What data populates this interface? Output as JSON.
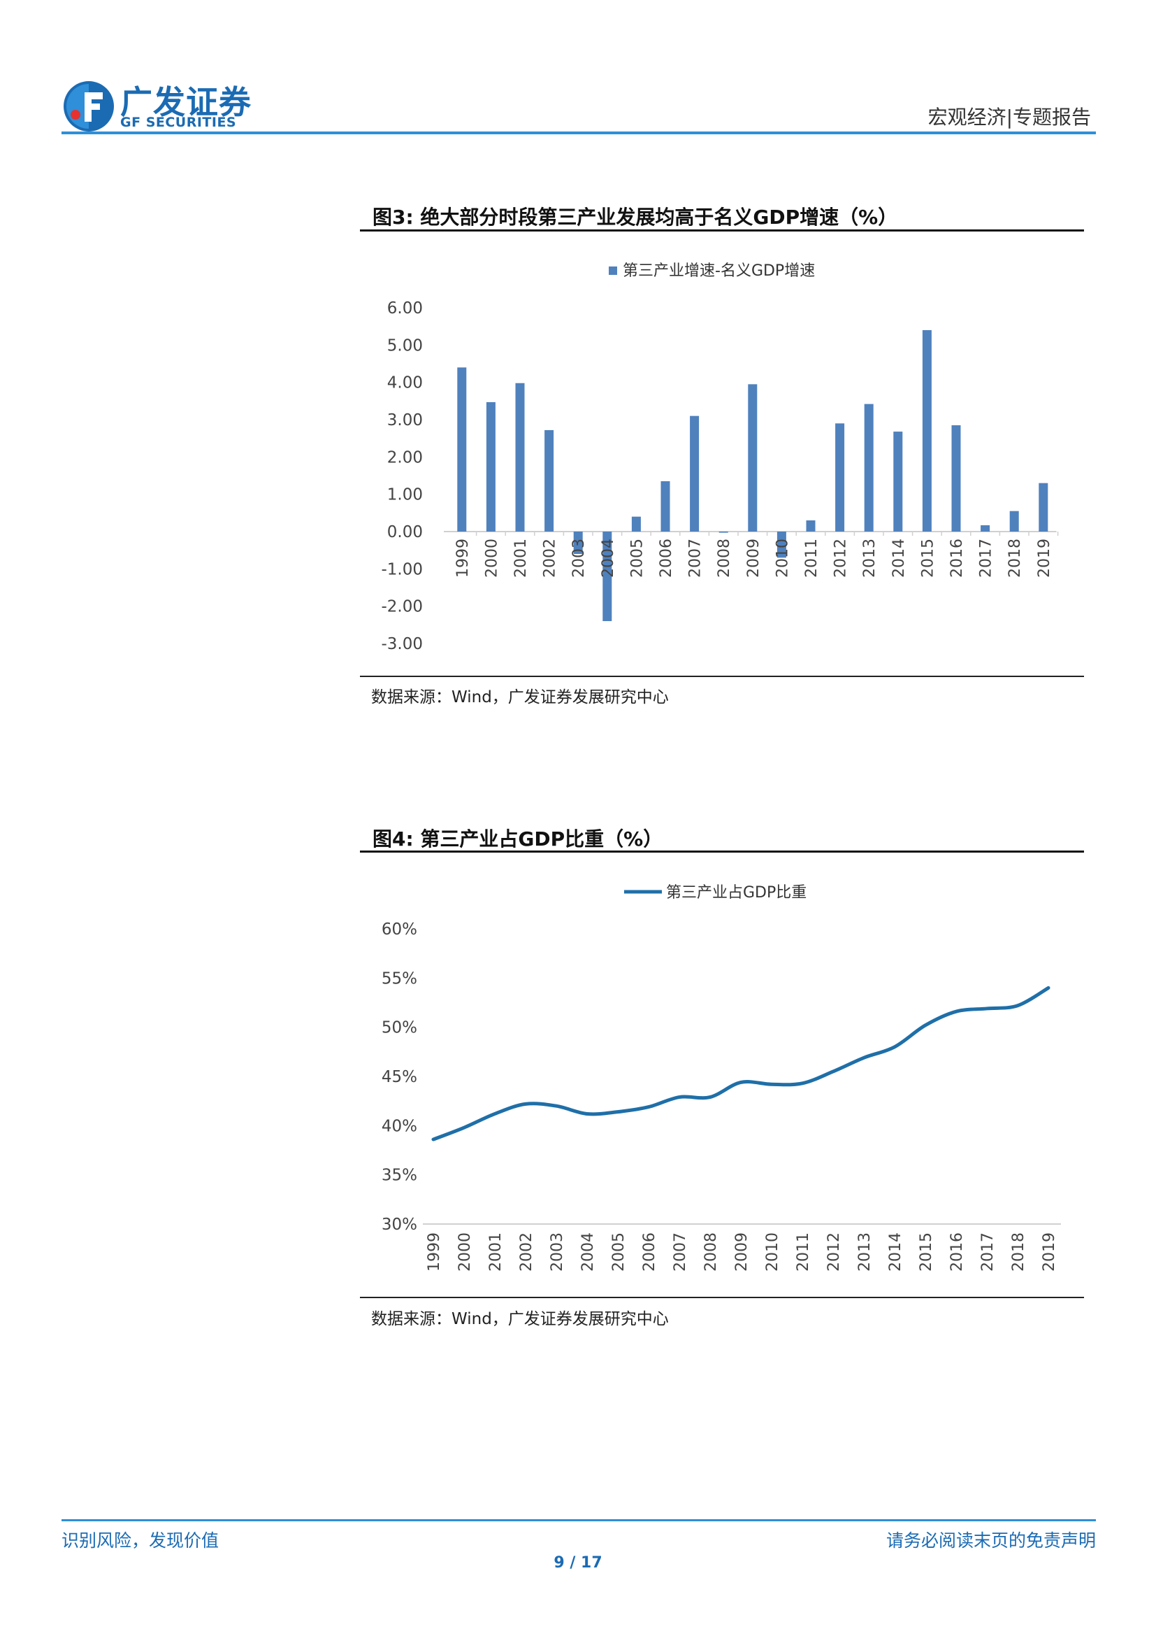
{
  "header": {
    "brand_cn": "广发证券",
    "brand_en": "GF SECURITIES",
    "report_type": "宏观经济|专题报告",
    "accent_color": "#2f8fd8",
    "brand_color": "#1b6bb3"
  },
  "figure3": {
    "title": "图3:  绝大部分时段第三产业发展均高于名义GDP增速（%）",
    "source": "数据来源：Wind，广发证券发展研究中心",
    "chart_data": {
      "type": "bar",
      "legend": "第三产业增速-名义GDP增速",
      "legend_position": "top-center",
      "bar_color": "#4f81bd",
      "ylim": [
        -3,
        6
      ],
      "yticks": [
        "6.00",
        "5.00",
        "4.00",
        "3.00",
        "2.00",
        "1.00",
        "0.00",
        "-1.00",
        "-2.00",
        "-3.00"
      ],
      "ytick_values": [
        6,
        5,
        4,
        3,
        2,
        1,
        0,
        -1,
        -2,
        -3
      ],
      "categories": [
        "1999",
        "2000",
        "2001",
        "2002",
        "2003",
        "2004",
        "2005",
        "2006",
        "2007",
        "2008",
        "2009",
        "2010",
        "2011",
        "2012",
        "2013",
        "2014",
        "2015",
        "2016",
        "2017",
        "2018",
        "2019"
      ],
      "values": [
        4.4,
        3.47,
        3.98,
        2.72,
        -0.6,
        -2.4,
        0.4,
        1.35,
        3.1,
        -0.03,
        3.95,
        -0.7,
        0.3,
        2.9,
        3.42,
        2.68,
        5.4,
        2.85,
        0.17,
        0.55,
        1.3
      ]
    }
  },
  "figure4": {
    "title": "图4:  第三产业占GDP比重（%）",
    "source": "数据来源：Wind，广发证券发展研究中心",
    "chart_data": {
      "type": "line",
      "legend": "第三产业占GDP比重",
      "legend_position": "top-center",
      "line_color": "#1f6fa8",
      "ylim": [
        30,
        60
      ],
      "yticks": [
        "60%",
        "55%",
        "50%",
        "45%",
        "40%",
        "35%",
        "30%"
      ],
      "ytick_values": [
        60,
        55,
        50,
        45,
        40,
        35,
        30
      ],
      "categories": [
        "1999",
        "2000",
        "2001",
        "2002",
        "2003",
        "2004",
        "2005",
        "2006",
        "2007",
        "2008",
        "2009",
        "2010",
        "2011",
        "2012",
        "2013",
        "2014",
        "2015",
        "2016",
        "2017",
        "2018",
        "2019"
      ],
      "values": [
        38.6,
        39.8,
        41.2,
        42.2,
        42.0,
        41.2,
        41.4,
        41.9,
        42.9,
        42.9,
        44.4,
        44.2,
        44.3,
        45.5,
        46.9,
        48.0,
        50.2,
        51.6,
        51.9,
        52.2,
        54.0
      ]
    }
  },
  "footer": {
    "left": "识别风险，发现价值",
    "right": "请务必阅读末页的免责声明",
    "page": "9 / 17"
  }
}
